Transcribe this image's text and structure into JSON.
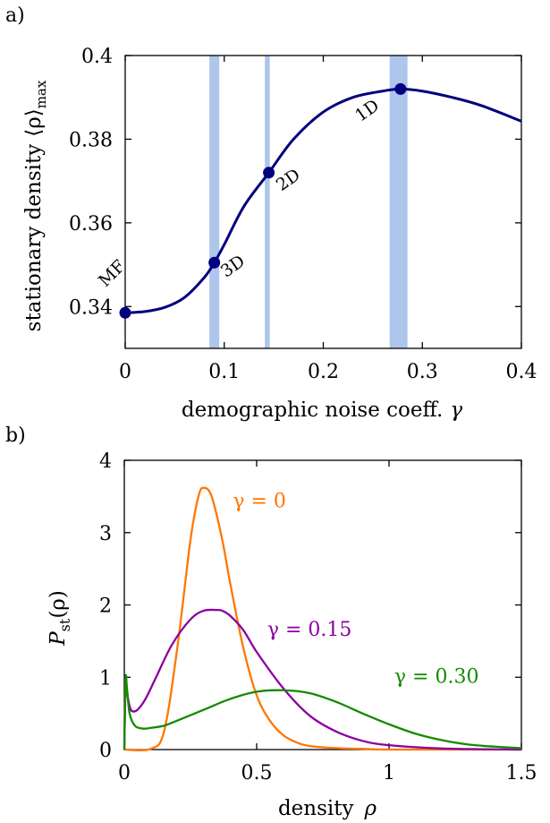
{
  "colors": {
    "navy": "#00007d",
    "band": "#aec6eb",
    "orange": "#ff7700",
    "purple": "#8b00a0",
    "green": "#158a00"
  },
  "chart_data": [
    {
      "panel": "a)",
      "type": "line",
      "xlabel": "demographic noise coeff.",
      "xlabel_symbol": "γ",
      "ylabel": "stationary density",
      "ylabel_symbol": "⟨ρ⟩",
      "ylabel_sub": "max",
      "xlim": [
        0,
        0.4
      ],
      "ylim": [
        0.33,
        0.4
      ],
      "x_ticks": [
        0,
        0.1,
        0.2,
        0.3,
        0.4
      ],
      "x_tick_labels": [
        "0",
        "0.1",
        "0.2",
        "0.3",
        "0.4"
      ],
      "y_ticks": [
        0.34,
        0.36,
        0.38,
        0.4
      ],
      "y_tick_labels": [
        "0.34",
        "0.36",
        "0.38",
        "0.4"
      ],
      "bands": [
        {
          "x0": 0.085,
          "x1": 0.095
        },
        {
          "x0": 0.141,
          "x1": 0.146
        },
        {
          "x0": 0.267,
          "x1": 0.285
        }
      ],
      "curve": {
        "x": [
          0,
          0.02,
          0.04,
          0.06,
          0.08,
          0.09,
          0.1,
          0.12,
          0.145,
          0.17,
          0.2,
          0.23,
          0.26,
          0.278,
          0.3,
          0.33,
          0.36,
          0.4
        ],
        "y": [
          0.3385,
          0.3388,
          0.3398,
          0.3422,
          0.347,
          0.3505,
          0.3548,
          0.364,
          0.372,
          0.38,
          0.3865,
          0.39,
          0.3915,
          0.392,
          0.3915,
          0.39,
          0.388,
          0.3843
        ]
      },
      "points": [
        {
          "label": "MF",
          "x": 0,
          "y": 0.3385
        },
        {
          "label": "3D",
          "x": 0.09,
          "y": 0.3505
        },
        {
          "label": "2D",
          "x": 0.145,
          "y": 0.372
        },
        {
          "label": "1D",
          "x": 0.278,
          "y": 0.392
        }
      ]
    },
    {
      "panel": "b)",
      "type": "line",
      "xlabel": "density",
      "xlabel_symbol": "ρ",
      "ylabel": "P",
      "ylabel_sub": "st",
      "ylabel_suffix": "(ρ)",
      "xlim": [
        0,
        1.5
      ],
      "ylim": [
        0,
        4
      ],
      "x_ticks": [
        0,
        0.5,
        1,
        1.5
      ],
      "x_tick_labels": [
        "0",
        "0.5",
        "1",
        "1.5"
      ],
      "y_ticks": [
        0,
        1,
        2,
        3,
        4
      ],
      "y_tick_labels": [
        "0",
        "1",
        "2",
        "3",
        "4"
      ],
      "series": [
        {
          "name": "γ = 0",
          "color": "#ff7700",
          "x": [
            0,
            0.1,
            0.15,
            0.2,
            0.25,
            0.28,
            0.3,
            0.33,
            0.37,
            0.4,
            0.45,
            0.5,
            0.55,
            0.6,
            0.65,
            0.7,
            0.8,
            0.9,
            1.0,
            1.2,
            1.5
          ],
          "y": [
            0,
            0.01,
            0.25,
            1.4,
            2.9,
            3.5,
            3.62,
            3.5,
            2.9,
            2.3,
            1.4,
            0.75,
            0.4,
            0.2,
            0.1,
            0.05,
            0.02,
            0.01,
            0,
            0,
            0
          ]
        },
        {
          "name": "γ = 0.15",
          "color": "#8b00a0",
          "x": [
            0,
            0.005,
            0.01,
            0.02,
            0.03,
            0.05,
            0.08,
            0.12,
            0.18,
            0.25,
            0.3,
            0.35,
            0.37,
            0.4,
            0.45,
            0.5,
            0.6,
            0.7,
            0.8,
            0.9,
            1.0,
            1.2,
            1.5
          ],
          "y": [
            0,
            0.95,
            0.8,
            0.6,
            0.53,
            0.55,
            0.7,
            1.0,
            1.45,
            1.8,
            1.92,
            1.93,
            1.92,
            1.85,
            1.65,
            1.35,
            0.85,
            0.47,
            0.25,
            0.12,
            0.06,
            0.015,
            0
          ]
        },
        {
          "name": "γ = 0.30",
          "color": "#158a00",
          "x": [
            0,
            0.005,
            0.01,
            0.02,
            0.04,
            0.07,
            0.1,
            0.15,
            0.2,
            0.3,
            0.4,
            0.5,
            0.6,
            0.7,
            0.8,
            0.9,
            1.0,
            1.1,
            1.2,
            1.3,
            1.4,
            1.5
          ],
          "y": [
            0,
            0.98,
            0.85,
            0.5,
            0.33,
            0.29,
            0.3,
            0.33,
            0.4,
            0.55,
            0.7,
            0.8,
            0.82,
            0.78,
            0.66,
            0.5,
            0.35,
            0.22,
            0.13,
            0.07,
            0.04,
            0.02
          ]
        }
      ]
    }
  ]
}
